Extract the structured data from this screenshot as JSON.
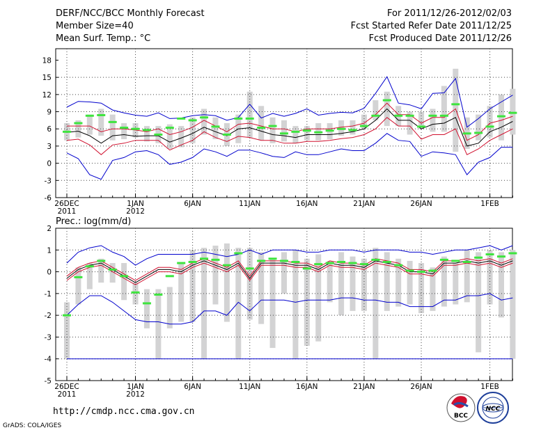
{
  "header": {
    "title": "DERF/NCC/BCC Monthly Forecast",
    "member_size": "Member Size=40",
    "panel1_variable": "Mean Surf. Temp.: °C",
    "fcst_range": "For 2011/12/26-2012/02/03",
    "fcst_started": "Fcst Started Refer Date 2011/12/25",
    "fcst_produced": "Fcst Produced Date 2011/12/26"
  },
  "footer": {
    "url": "http://cmdp.ncc.cma.gov.cn",
    "credit": "GrADS: COLA/IGES",
    "logo_left": "BCC",
    "logo_right": "NCC"
  },
  "colors": {
    "box": "#d3d3d4",
    "median": "#000000",
    "inner": "#d0102e",
    "outer": "#0000cd",
    "marker": "#3ee43e",
    "grid": "#444444"
  },
  "chart_data": [
    {
      "type": "line",
      "title": "Mean Surf. Temp.: °C",
      "ylim": [
        -6,
        20
      ],
      "yticks": [
        -6,
        -3,
        0,
        3,
        6,
        9,
        12,
        15,
        18
      ],
      "xlim": [
        0,
        39.6
      ],
      "xticks": [
        {
          "x": 0,
          "label": "26DEC",
          "sub": "2011"
        },
        {
          "x": 6,
          "label": "1JAN",
          "sub": "2012"
        },
        {
          "x": 11,
          "label": "6JAN",
          "sub": ""
        },
        {
          "x": 16,
          "label": "11JAN",
          "sub": ""
        },
        {
          "x": 21,
          "label": "16JAN",
          "sub": ""
        },
        {
          "x": 26,
          "label": "21JAN",
          "sub": ""
        },
        {
          "x": 31,
          "label": "26JAN",
          "sub": ""
        },
        {
          "x": 37,
          "label": "1FEB",
          "sub": ""
        }
      ],
      "box_low": [
        4,
        4.5,
        5,
        4.8,
        4,
        4.2,
        4.5,
        3.8,
        3.5,
        2.5,
        2.8,
        3.5,
        5,
        4.2,
        3,
        3.5,
        4.5,
        4,
        3.5,
        3.8,
        3.5,
        4,
        4,
        4.2,
        4.8,
        5,
        6,
        7.5,
        6.5,
        6.5,
        5,
        6,
        5.5,
        5.5,
        2,
        2.5,
        4,
        4.5,
        4,
        5
      ],
      "box_high": [
        7,
        7.5,
        8.5,
        9.5,
        8.5,
        7,
        7,
        6.5,
        6.5,
        6.8,
        6.5,
        8,
        9.5,
        8,
        7,
        8.5,
        12.5,
        10,
        8,
        7.5,
        6.5,
        6.5,
        7,
        7,
        7.5,
        7.5,
        8.5,
        11,
        12.5,
        10,
        9,
        9,
        9.5,
        13.5,
        16.5,
        8,
        8.5,
        10,
        12,
        13
      ],
      "series": [
        {
          "name": "upper",
          "values": [
            9.8,
            10.8,
            10.7,
            10.5,
            9.3,
            8.8,
            8.4,
            8.2,
            8.8,
            7.8,
            7.9,
            8.3,
            8.5,
            8.3,
            7.5,
            8.0,
            10.3,
            7.9,
            8.7,
            8.2,
            8.7,
            9.5,
            8.4,
            8.7,
            8.9,
            8.8,
            9.6,
            12.2,
            15.1,
            10.5,
            10.2,
            9.5,
            12.2,
            12.3,
            14.8,
            6.3,
            7.8,
            9.5,
            10.7,
            11.9
          ]
        },
        {
          "name": "red_high",
          "values": [
            6.5,
            6.5,
            6.5,
            5.5,
            6,
            6,
            5.8,
            5.5,
            6,
            5,
            5.5,
            6.3,
            7.5,
            6.5,
            5.5,
            6.8,
            7,
            6.5,
            6,
            6,
            5.5,
            6,
            6,
            6,
            6.3,
            6.5,
            7,
            8.5,
            10.5,
            8.5,
            8.5,
            7,
            8,
            8,
            9.5,
            4,
            5,
            7,
            7.5,
            8.2
          ]
        },
        {
          "name": "median",
          "values": [
            5.4,
            5.6,
            4.8,
            3.5,
            4.8,
            5,
            4.7,
            4.8,
            4.8,
            3.7,
            4.4,
            5.2,
            6.3,
            5.5,
            4.8,
            6,
            6.2,
            5.6,
            5,
            4.8,
            4.5,
            5,
            5,
            5,
            5.2,
            5.5,
            6,
            7.5,
            9.5,
            7.5,
            7.5,
            6,
            6.8,
            7,
            8,
            3,
            3.5,
            5.5,
            6.3,
            7.3
          ]
        },
        {
          "name": "red_low",
          "values": [
            4,
            4.2,
            3.2,
            1.5,
            3.2,
            3.5,
            4,
            4,
            4,
            2.3,
            3.2,
            4,
            5.5,
            4.5,
            3.8,
            4.7,
            4.5,
            4,
            4,
            3.5,
            3.5,
            3.8,
            3.8,
            4,
            4.3,
            4.5,
            5,
            6,
            8,
            6.5,
            6.5,
            4.2,
            5,
            5,
            6,
            1.5,
            2.5,
            4,
            5,
            6
          ]
        },
        {
          "name": "lower",
          "values": [
            1.8,
            0.8,
            -2,
            -2.8,
            0.5,
            1,
            2,
            2.2,
            1.5,
            -0.2,
            0.2,
            1,
            2.5,
            2,
            1.2,
            2.3,
            2.3,
            1.8,
            1.2,
            1,
            2,
            1.5,
            1.5,
            2,
            2.5,
            2.2,
            2.2,
            3.5,
            5.2,
            4,
            3.8,
            1.2,
            2,
            1.8,
            1.5,
            -2,
            0.2,
            1,
            2.8,
            2.8
          ]
        }
      ],
      "markers": [
        5.5,
        7,
        8.3,
        8.4,
        7.2,
        6.2,
        6,
        5.8,
        5,
        6.2,
        7.8,
        7.5,
        8,
        6.4,
        5,
        7.8,
        7.8,
        6.2,
        6.5,
        5.2,
        5.5,
        5.7,
        5.4,
        5.7,
        6,
        5.8,
        6.5,
        8.3,
        11,
        8.3,
        8.3,
        6.4,
        8.3,
        8.3,
        10.3,
        5.2,
        5.3,
        6.4,
        8.2,
        8.8
      ]
    },
    {
      "type": "line",
      "title": "Prec.: log(mm/d)",
      "ylim": [
        -5,
        2
      ],
      "yticks": [
        -5,
        -4,
        -3,
        -2,
        -1,
        0,
        1,
        2
      ],
      "xlim": [
        0,
        39.6
      ],
      "xticks": [
        {
          "x": 0,
          "label": "26DEC",
          "sub": "2011"
        },
        {
          "x": 6,
          "label": "1JAN",
          "sub": "2012"
        },
        {
          "x": 11,
          "label": "6JAN",
          "sub": ""
        },
        {
          "x": 16,
          "label": "11JAN",
          "sub": ""
        },
        {
          "x": 21,
          "label": "16JAN",
          "sub": ""
        },
        {
          "x": 26,
          "label": "21JAN",
          "sub": ""
        },
        {
          "x": 31,
          "label": "26JAN",
          "sub": ""
        },
        {
          "x": 37,
          "label": "1FEB",
          "sub": ""
        }
      ],
      "box_low": [
        -4,
        -1.5,
        -0.8,
        -0.5,
        -0.5,
        -1.3,
        -1.5,
        -2.6,
        -4,
        -2.6,
        -2.3,
        -2.3,
        -4,
        -1.5,
        -2.3,
        -4,
        -2.2,
        -2.4,
        -3.5,
        -1,
        -4,
        -3.4,
        -3.2,
        -1.4,
        -2,
        -1.8,
        -1.8,
        -4,
        -1.8,
        -1.6,
        -1.5,
        -1.9,
        -1.8,
        -1.6,
        -1.5,
        -1.4,
        -3.7,
        -1.5,
        -2.1,
        -4
      ],
      "box_high": [
        -1.4,
        0.2,
        0.4,
        0.6,
        0.4,
        0.4,
        -0.5,
        -0.8,
        -0.8,
        -0.7,
        0.4,
        1.0,
        1.1,
        1.2,
        1.3,
        1.1,
        1.1,
        0.9,
        0.6,
        0.9,
        1.0,
        0.6,
        0.8,
        0.5,
        0.9,
        0.7,
        0.6,
        1.1,
        0.9,
        0.6,
        0.5,
        0.4,
        0.2,
        0.7,
        0.4,
        1.0,
        0.9,
        1.0,
        0.9,
        1.0
      ]
    }
  ]
}
